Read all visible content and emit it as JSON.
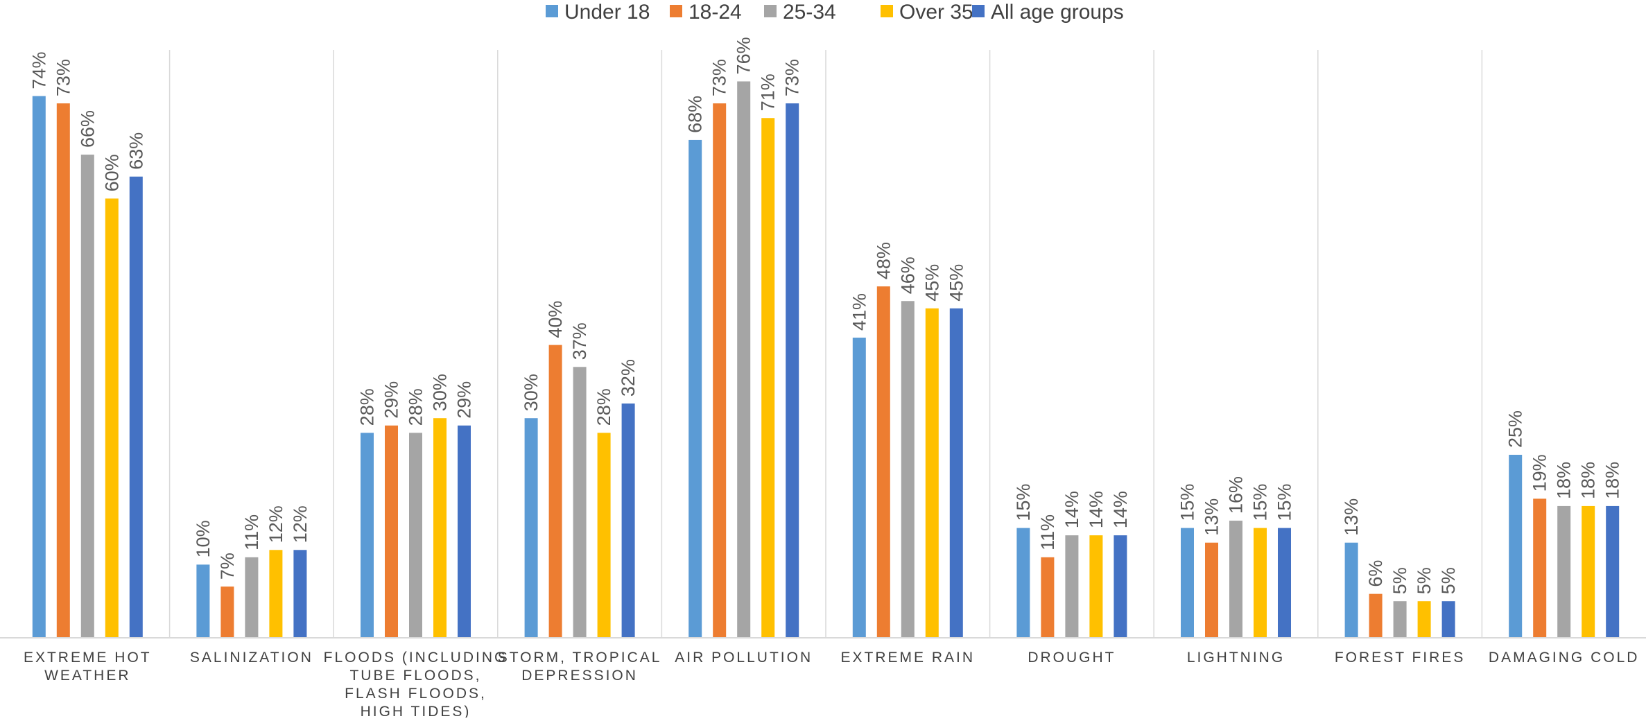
{
  "chart_data": {
    "type": "bar",
    "title": "",
    "xlabel": "",
    "ylabel": "",
    "ylim": [
      0,
      80
    ],
    "grid": false,
    "legend_position": "top",
    "categories": [
      [
        "EXTREME HOT",
        "WEATHER"
      ],
      [
        "SALINIZATION"
      ],
      [
        "FLOODS (INCLUDING",
        "TUBE FLOODS,",
        "FLASH FLOODS,",
        "HIGH TIDES)"
      ],
      [
        "STORM, TROPICAL",
        "DEPRESSION"
      ],
      [
        "AIR POLLUTION"
      ],
      [
        "EXTREME RAIN"
      ],
      [
        "DROUGHT"
      ],
      [
        "LIGHTNING"
      ],
      [
        "FOREST FIRES"
      ],
      [
        "DAMAGING COLD"
      ]
    ],
    "series": [
      {
        "name": "Under 18",
        "color": "#5B9BD5",
        "values": [
          74,
          10,
          28,
          30,
          68,
          41,
          15,
          15,
          13,
          25
        ]
      },
      {
        "name": "18-24",
        "color": "#ED7D31",
        "values": [
          73,
          7,
          29,
          40,
          73,
          48,
          11,
          13,
          6,
          19
        ]
      },
      {
        "name": "25-34",
        "color": "#A5A5A5",
        "values": [
          66,
          11,
          28,
          37,
          76,
          46,
          14,
          16,
          5,
          18
        ]
      },
      {
        "name": "Over 35",
        "color": "#FFC000",
        "values": [
          60,
          12,
          30,
          28,
          71,
          45,
          14,
          15,
          5,
          18
        ]
      },
      {
        "name": "All age groups",
        "color": "#4472C4",
        "values": [
          63,
          12,
          29,
          32,
          73,
          45,
          14,
          15,
          5,
          18
        ]
      }
    ],
    "value_suffix": "%"
  }
}
